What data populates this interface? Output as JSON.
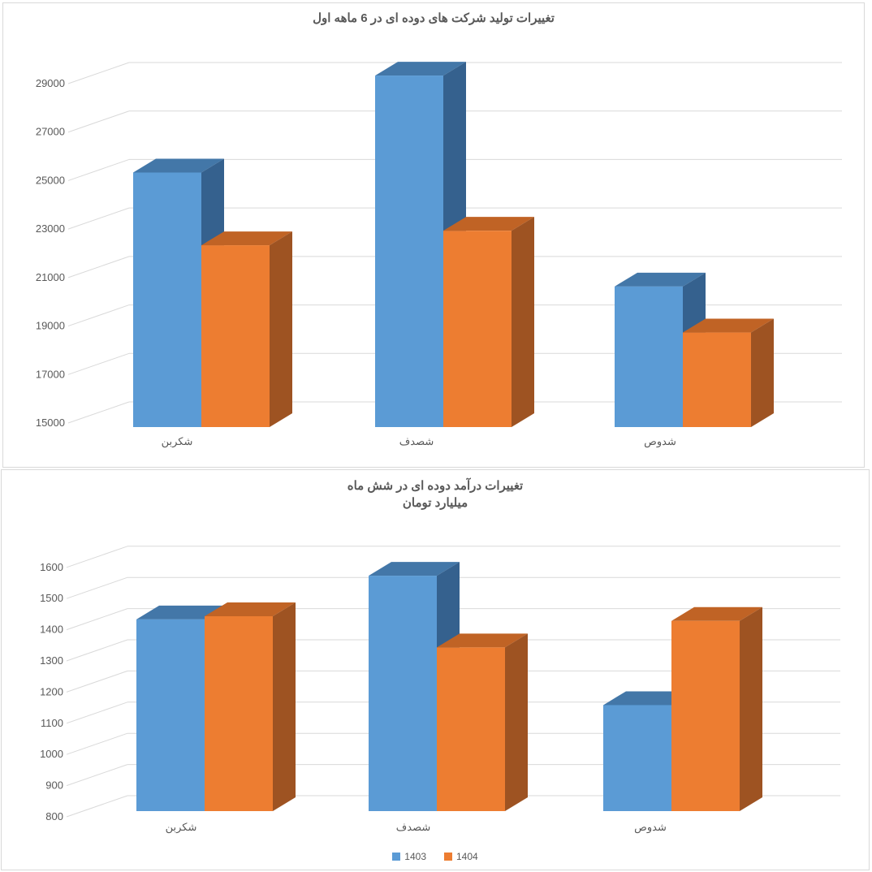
{
  "palette": {
    "gridline": "#d9d9d9",
    "text": "#595959",
    "panel_border": "#d9d9d9",
    "background": "#ffffff"
  },
  "chart_data": [
    {
      "type": "bar",
      "effect": "3d-clustered-column",
      "title": "تغییرات تولید شرکت های دوده ای در 6 ماهه اول",
      "categories": [
        "شکربن",
        "شصدف",
        "شدوص"
      ],
      "series": [
        {
          "name": "1403",
          "values": [
            25500,
            29500,
            20800
          ],
          "colors": {
            "front": "#5b9bd5",
            "top": "#4377a8",
            "side": "#35618e"
          }
        },
        {
          "name": "1404",
          "values": [
            22500,
            23100,
            18900
          ],
          "colors": {
            "front": "#ed7d31",
            "top": "#c06325",
            "side": "#9e5322"
          }
        }
      ],
      "ylim": [
        15000,
        30000
      ],
      "ytick_step": 2000,
      "yticks": [
        15000,
        17000,
        19000,
        21000,
        23000,
        25000,
        27000,
        29000
      ],
      "xlabel": "",
      "ylabel": "",
      "grid": true,
      "legend": false
    },
    {
      "type": "bar",
      "effect": "3d-clustered-column",
      "title": "تغییرات درآمد دوده ای در شش ماه",
      "subtitle": "میلیارد تومان",
      "categories": [
        "شکربن",
        "شصدف",
        "شدوص"
      ],
      "series": [
        {
          "name": "1403",
          "values": [
            1415,
            1555,
            1140
          ],
          "colors": {
            "front": "#5b9bd5",
            "top": "#4377a8",
            "side": "#35618e"
          }
        },
        {
          "name": "1404",
          "values": [
            1425,
            1325,
            1410
          ],
          "colors": {
            "front": "#ed7d31",
            "top": "#c06325",
            "side": "#9e5322"
          }
        }
      ],
      "ylim": [
        800,
        1600
      ],
      "ytick_step": 100,
      "yticks": [
        800,
        900,
        1000,
        1100,
        1200,
        1300,
        1400,
        1500,
        1600
      ],
      "xlabel": "",
      "ylabel": "",
      "grid": true,
      "legend": true,
      "legend_position": "bottom-center",
      "legend_items": [
        "1403",
        "1404"
      ]
    }
  ]
}
